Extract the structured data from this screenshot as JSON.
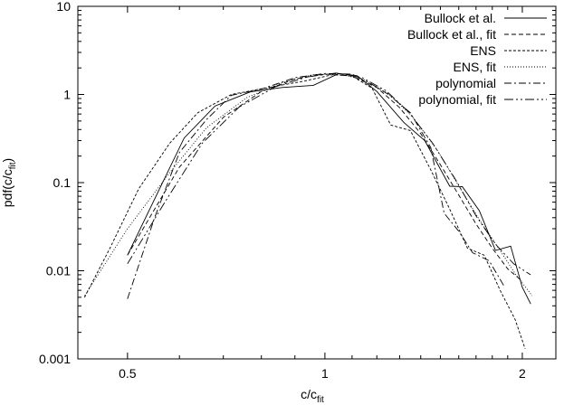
{
  "chart_data": {
    "type": "line",
    "title": "",
    "xlabel": "c/c",
    "xlabel_sub": "fit",
    "ylabel": "pdf(c/c",
    "ylabel_sub": "fit",
    "ylabel_close": ")",
    "x_scale": "log",
    "y_scale": "log",
    "xlim": [
      0.42,
      2.25
    ],
    "ylim": [
      0.001,
      10
    ],
    "grid": false,
    "legend_position": "top-right",
    "x_ticks": [
      {
        "value": 0.5,
        "label": "0.5"
      },
      {
        "value": 1,
        "label": "1"
      },
      {
        "value": 2,
        "label": "2"
      }
    ],
    "y_ticks": [
      {
        "value": 0.001,
        "label": "0.001"
      },
      {
        "value": 0.01,
        "label": "0.01"
      },
      {
        "value": 0.1,
        "label": "0.1"
      },
      {
        "value": 1,
        "label": "1"
      },
      {
        "value": 10,
        "label": "10"
      }
    ],
    "series": [
      {
        "name": "Bullock et al.",
        "dash": "",
        "points": [
          [
            0.5,
            0.015
          ],
          [
            0.55,
            0.065
          ],
          [
            0.61,
            0.32
          ],
          [
            0.68,
            0.74
          ],
          [
            0.77,
            1.07
          ],
          [
            0.86,
            1.2
          ],
          [
            0.96,
            1.27
          ],
          [
            1.05,
            1.73
          ],
          [
            1.12,
            1.63
          ],
          [
            1.2,
            1.08
          ],
          [
            1.32,
            0.48
          ],
          [
            1.42,
            0.3
          ],
          [
            1.55,
            0.091
          ],
          [
            1.62,
            0.09
          ],
          [
            1.72,
            0.048
          ],
          [
            1.82,
            0.017
          ],
          [
            1.92,
            0.019
          ],
          [
            2.0,
            0.0065
          ],
          [
            2.06,
            0.0042
          ]
        ]
      },
      {
        "name": "Bullock et al., fit",
        "dash": "5,3",
        "points": [
          [
            0.5,
            0.015
          ],
          [
            0.6,
            0.15
          ],
          [
            0.7,
            0.55
          ],
          [
            0.8,
            1.08
          ],
          [
            0.9,
            1.5
          ],
          [
            1.0,
            1.7
          ],
          [
            1.1,
            1.62
          ],
          [
            1.2,
            1.2
          ],
          [
            1.3,
            0.71
          ],
          [
            1.4,
            0.36
          ],
          [
            1.5,
            0.16
          ],
          [
            1.6,
            0.072
          ],
          [
            1.7,
            0.034
          ],
          [
            1.8,
            0.018
          ],
          [
            1.9,
            0.0105
          ],
          [
            2.0,
            0.0076
          ]
        ]
      },
      {
        "name": "ENS",
        "dash": "3,2",
        "points": [
          [
            0.43,
            0.005
          ],
          [
            0.47,
            0.018
          ],
          [
            0.52,
            0.085
          ],
          [
            0.58,
            0.28
          ],
          [
            0.64,
            0.62
          ],
          [
            0.72,
            1.0
          ],
          [
            0.82,
            1.2
          ],
          [
            0.93,
            1.42
          ],
          [
            1.03,
            1.68
          ],
          [
            1.1,
            1.62
          ],
          [
            1.18,
            1.18
          ],
          [
            1.26,
            0.45
          ],
          [
            1.35,
            0.39
          ],
          [
            1.45,
            0.14
          ],
          [
            1.55,
            0.05
          ],
          [
            1.65,
            0.018
          ],
          [
            1.75,
            0.015
          ],
          [
            1.85,
            0.006
          ],
          [
            1.95,
            0.0028
          ],
          [
            2.02,
            0.0013
          ]
        ]
      },
      {
        "name": "ENS, fit",
        "dash": "1,2",
        "points": [
          [
            0.43,
            0.0052
          ],
          [
            0.5,
            0.03
          ],
          [
            0.58,
            0.13
          ],
          [
            0.66,
            0.42
          ],
          [
            0.76,
            0.92
          ],
          [
            0.86,
            1.36
          ],
          [
            0.96,
            1.68
          ],
          [
            1.05,
            1.72
          ],
          [
            1.15,
            1.46
          ],
          [
            1.25,
            1.02
          ],
          [
            1.36,
            0.56
          ],
          [
            1.48,
            0.24
          ],
          [
            1.6,
            0.092
          ],
          [
            1.72,
            0.038
          ],
          [
            1.85,
            0.017
          ],
          [
            1.95,
            0.0093
          ],
          [
            2.07,
            0.0052
          ]
        ]
      },
      {
        "name": "polynomial",
        "dash": "8,3,2,3",
        "points": [
          [
            0.5,
            0.0048
          ],
          [
            0.55,
            0.04
          ],
          [
            0.6,
            0.22
          ],
          [
            0.66,
            0.52
          ],
          [
            0.72,
            0.98
          ],
          [
            0.8,
            1.15
          ],
          [
            0.9,
            1.55
          ],
          [
            1.0,
            1.73
          ],
          [
            1.1,
            1.7
          ],
          [
            1.18,
            1.3
          ],
          [
            1.25,
            1.0
          ],
          [
            1.35,
            0.62
          ],
          [
            1.45,
            0.25
          ],
          [
            1.52,
            0.045
          ],
          [
            1.6,
            0.028
          ],
          [
            1.68,
            0.016
          ],
          [
            1.78,
            0.013
          ],
          [
            1.88,
            0.0065
          ]
        ]
      },
      {
        "name": "polynomial, fit",
        "dash": "10,3,2,3,2,3",
        "points": [
          [
            0.5,
            0.012
          ],
          [
            0.57,
            0.06
          ],
          [
            0.65,
            0.28
          ],
          [
            0.74,
            0.72
          ],
          [
            0.84,
            1.22
          ],
          [
            0.94,
            1.58
          ],
          [
            1.04,
            1.75
          ],
          [
            1.14,
            1.55
          ],
          [
            1.24,
            1.1
          ],
          [
            1.34,
            0.64
          ],
          [
            1.46,
            0.28
          ],
          [
            1.58,
            0.11
          ],
          [
            1.7,
            0.042
          ],
          [
            1.82,
            0.02
          ],
          [
            1.94,
            0.012
          ],
          [
            2.06,
            0.009
          ]
        ]
      }
    ]
  }
}
